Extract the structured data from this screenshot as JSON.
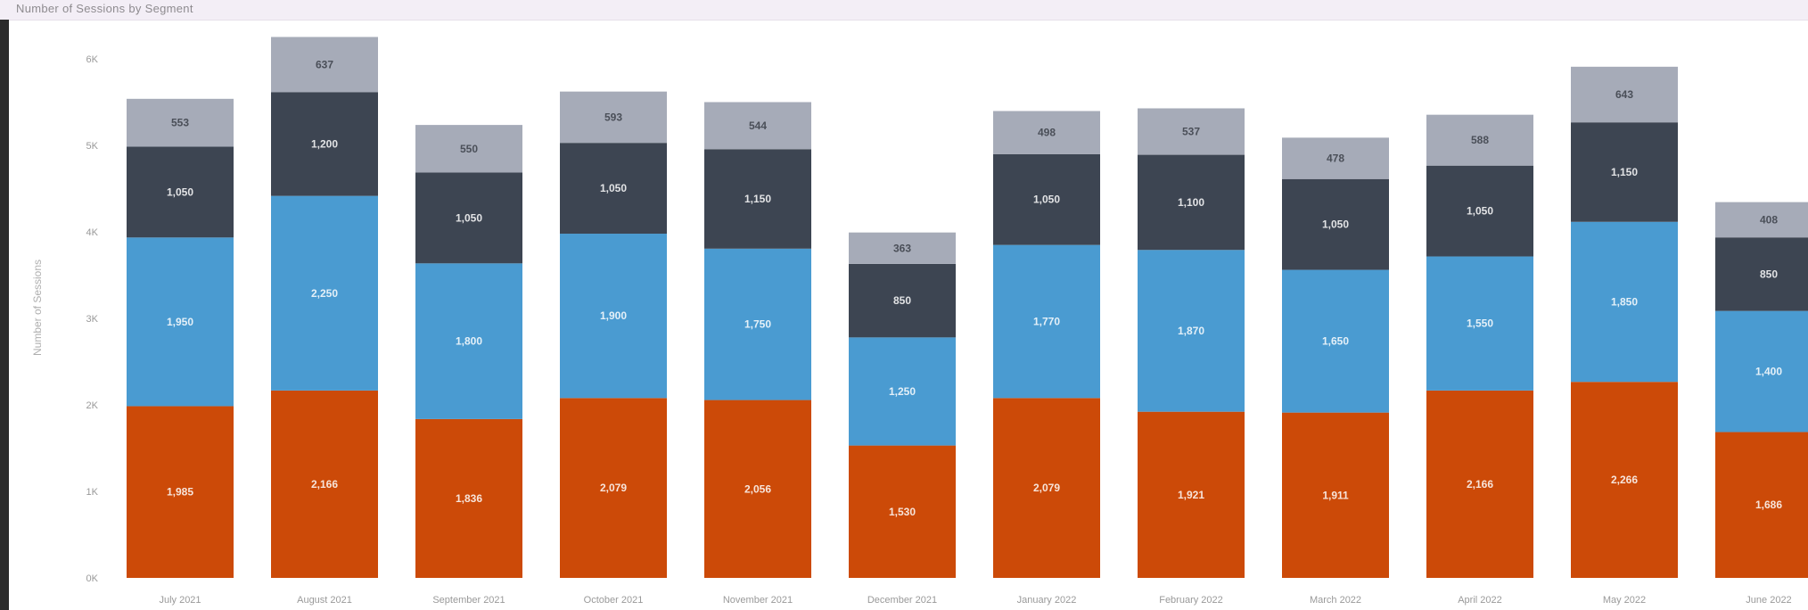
{
  "page": {
    "title": "Number of Sessions by Segment"
  },
  "chart_data": {
    "type": "bar",
    "stacked": true,
    "title": "Number of Sessions by Segment",
    "xlabel": "",
    "ylabel": "Number of Sessions",
    "ylim": [
      0,
      9000
    ],
    "yticks": [
      0,
      1000,
      2000,
      3000,
      4000,
      5000,
      6000
    ],
    "ytick_labels": [
      "0K",
      "1K",
      "2K",
      "3K",
      "4K",
      "5K",
      "6K"
    ],
    "grid": false,
    "categories": [
      "July 2021",
      "August 2021",
      "September 2021",
      "October 2021",
      "November 2021",
      "December 2021",
      "January 2022",
      "February 2022",
      "March 2022",
      "April 2022",
      "May 2022",
      "June 2022"
    ],
    "series": [
      {
        "color": "#cc4a08",
        "values": [
          1985,
          2166,
          1836,
          2079,
          2056,
          1530,
          2079,
          1921,
          1911,
          2166,
          2266,
          1686
        ],
        "labels": [
          "1,985",
          "2,166",
          "1,836",
          "2,079",
          "2,056",
          "1,530",
          "2,079",
          "1,921",
          "1,911",
          "2,166",
          "2,266",
          "1,686"
        ]
      },
      {
        "color": "#4a9bd1",
        "values": [
          1950,
          2250,
          1800,
          1900,
          1750,
          1250,
          1770,
          1870,
          1650,
          1550,
          1850,
          1400
        ],
        "labels": [
          "1,950",
          "2,250",
          "1,800",
          "1,900",
          "1,750",
          "1,250",
          "1,770",
          "1,870",
          "1,650",
          "1,550",
          "1,850",
          "1,400"
        ]
      },
      {
        "color": "#3d4552",
        "values": [
          1050,
          1200,
          1050,
          1050,
          1150,
          850,
          1050,
          1100,
          1050,
          1050,
          1150,
          850
        ],
        "labels": [
          "1,050",
          "1,200",
          "1,050",
          "1,050",
          "1,150",
          "850",
          "1,050",
          "1,100",
          "1,050",
          "1,050",
          "1,150",
          "850"
        ]
      },
      {
        "color": "#a6abb8",
        "values": [
          553,
          637,
          550,
          593,
          544,
          363,
          498,
          537,
          478,
          588,
          643,
          408
        ],
        "labels": [
          "553",
          "637",
          "550",
          "593",
          "544",
          "363",
          "498",
          "537",
          "478",
          "588",
          "643",
          "408"
        ]
      }
    ]
  }
}
